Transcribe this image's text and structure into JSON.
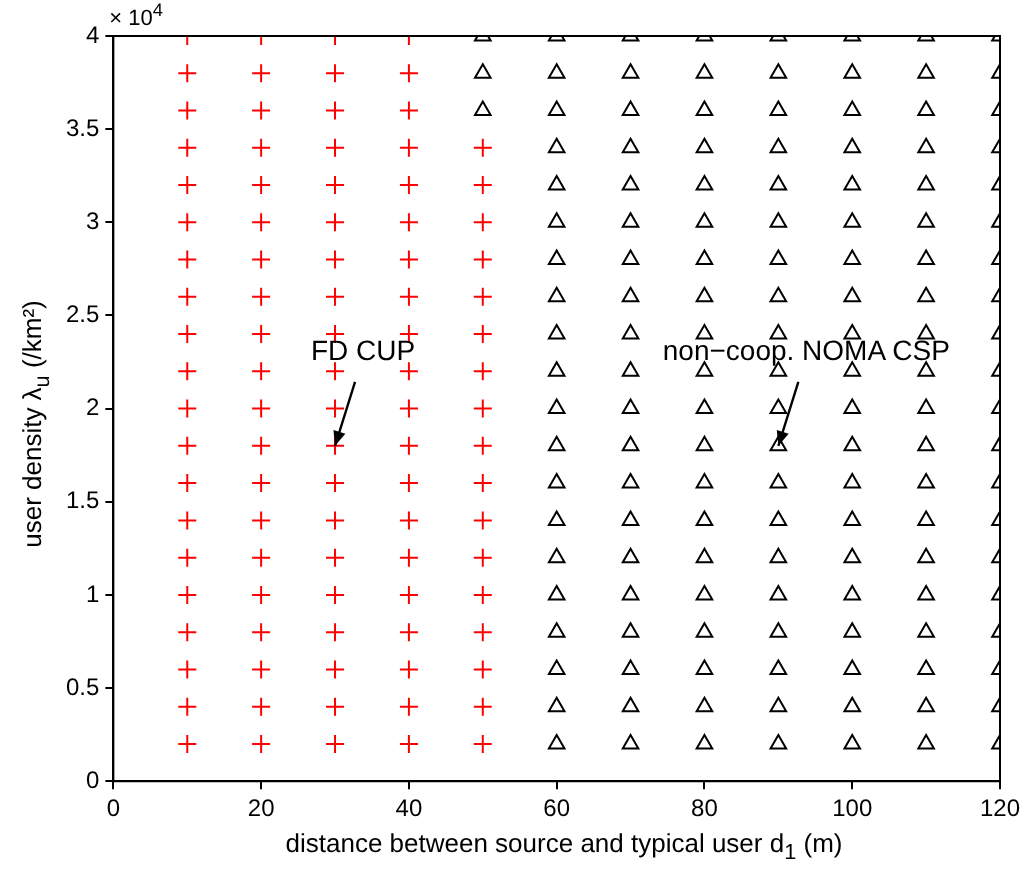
{
  "chart_data": {
    "type": "scatter",
    "xlabel": "distance between source and typical user  d$_{1}$ (m)",
    "ylabel": "user density λ$_{u}$ (/km²)",
    "xlim": [
      0,
      120
    ],
    "xticks": [
      0,
      20,
      40,
      60,
      80,
      100,
      120
    ],
    "ylim": [
      0,
      4
    ],
    "yticks": [
      0,
      0.5,
      1,
      1.5,
      2,
      2.5,
      3,
      3.5,
      4
    ],
    "annotations": [
      "× 10$^{4}$",
      {
        "text": "FD CUP",
        "x": 30,
        "y": 1.8
      },
      {
        "text": "non−coop. NOMA CSP",
        "x": 90,
        "y": 1.8
      }
    ],
    "series": [
      {
        "color": "#ff0000",
        "marker": "cross",
        "x": [
          10,
          10,
          10,
          10,
          10,
          10,
          10,
          10,
          10,
          10,
          10,
          10,
          10,
          10,
          10,
          10,
          10,
          10,
          10,
          10,
          20,
          20,
          20,
          20,
          20,
          20,
          20,
          20,
          20,
          20,
          20,
          20,
          20,
          20,
          20,
          20,
          20,
          20,
          20,
          20,
          30,
          30,
          30,
          30,
          30,
          30,
          30,
          30,
          30,
          30,
          30,
          30,
          30,
          30,
          30,
          30,
          30,
          30,
          30,
          30,
          40,
          40,
          40,
          40,
          40,
          40,
          40,
          40,
          40,
          40,
          40,
          40,
          40,
          40,
          40,
          40,
          40,
          40,
          40,
          40,
          50,
          50,
          50,
          50,
          50,
          50,
          50,
          50,
          50,
          50,
          50,
          50,
          50,
          50,
          50,
          50,
          50
        ],
        "values": [
          0.2,
          0.4,
          0.6,
          0.8,
          1,
          1.2,
          1.4,
          1.6,
          1.8,
          2,
          2.2,
          2.4,
          2.6,
          2.8,
          3,
          3.2,
          3.4,
          3.6,
          3.8,
          4,
          0.2,
          0.4,
          0.6,
          0.8,
          1,
          1.2,
          1.4,
          1.6,
          1.8,
          2,
          2.2,
          2.4,
          2.6,
          2.8,
          3,
          3.2,
          3.4,
          3.6,
          3.8,
          4,
          0.2,
          0.4,
          0.6,
          0.8,
          1,
          1.2,
          1.4,
          1.6,
          1.8,
          2,
          2.2,
          2.4,
          2.6,
          2.8,
          3,
          3.2,
          3.4,
          3.6,
          3.8,
          4,
          0.2,
          0.4,
          0.6,
          0.8,
          1,
          1.2,
          1.4,
          1.6,
          1.8,
          2,
          2.2,
          2.4,
          2.6,
          2.8,
          3,
          3.2,
          3.4,
          3.6,
          3.8,
          4,
          0.2,
          0.4,
          0.6,
          0.8,
          1,
          1.2,
          1.4,
          1.6,
          1.8,
          2,
          2.2,
          2.4,
          2.6,
          2.8,
          3,
          3.2,
          3.4
        ]
      },
      {
        "color": "#000000",
        "marker": "triangle",
        "x": [
          50,
          50,
          50,
          60,
          60,
          60,
          60,
          60,
          60,
          60,
          60,
          60,
          60,
          60,
          60,
          60,
          60,
          60,
          60,
          60,
          60,
          60,
          60,
          70,
          70,
          70,
          70,
          70,
          70,
          70,
          70,
          70,
          70,
          70,
          70,
          70,
          70,
          70,
          70,
          70,
          70,
          70,
          70,
          80,
          80,
          80,
          80,
          80,
          80,
          80,
          80,
          80,
          80,
          80,
          80,
          80,
          80,
          80,
          80,
          80,
          80,
          80,
          80,
          90,
          90,
          90,
          90,
          90,
          90,
          90,
          90,
          90,
          90,
          90,
          90,
          90,
          90,
          90,
          90,
          90,
          90,
          90,
          90,
          100,
          100,
          100,
          100,
          100,
          100,
          100,
          100,
          100,
          100,
          100,
          100,
          100,
          100,
          100,
          100,
          100,
          100,
          100,
          100,
          110,
          110,
          110,
          110,
          110,
          110,
          110,
          110,
          110,
          110,
          110,
          110,
          110,
          110,
          110,
          110,
          110,
          110,
          110,
          110,
          120,
          120,
          120,
          120,
          120,
          120,
          120,
          120,
          120,
          120,
          120,
          120,
          120,
          120,
          120,
          120,
          120,
          120,
          120,
          120
        ],
        "values": [
          3.6,
          3.8,
          4,
          0.2,
          0.4,
          0.6,
          0.8,
          1,
          1.2,
          1.4,
          1.6,
          1.8,
          2,
          2.2,
          2.4,
          2.6,
          2.8,
          3,
          3.2,
          3.4,
          3.6,
          3.8,
          4,
          0.2,
          0.4,
          0.6,
          0.8,
          1,
          1.2,
          1.4,
          1.6,
          1.8,
          2,
          2.2,
          2.4,
          2.6,
          2.8,
          3,
          3.2,
          3.4,
          3.6,
          3.8,
          4,
          0.2,
          0.4,
          0.6,
          0.8,
          1,
          1.2,
          1.4,
          1.6,
          1.8,
          2,
          2.2,
          2.4,
          2.6,
          2.8,
          3,
          3.2,
          3.4,
          3.6,
          3.8,
          4,
          0.2,
          0.4,
          0.6,
          0.8,
          1,
          1.2,
          1.4,
          1.6,
          1.8,
          2,
          2.2,
          2.4,
          2.6,
          2.8,
          3,
          3.2,
          3.4,
          3.6,
          3.8,
          4,
          0.2,
          0.4,
          0.6,
          0.8,
          1,
          1.2,
          1.4,
          1.6,
          1.8,
          2,
          2.2,
          2.4,
          2.6,
          2.8,
          3,
          3.2,
          3.4,
          3.6,
          3.8,
          4,
          0.2,
          0.4,
          0.6,
          0.8,
          1,
          1.2,
          1.4,
          1.6,
          1.8,
          2,
          2.2,
          2.4,
          2.6,
          2.8,
          3,
          3.2,
          3.4,
          3.6,
          3.8,
          4,
          0.2,
          0.4,
          0.6,
          0.8,
          1,
          1.2,
          1.4,
          1.6,
          1.8,
          2,
          2.2,
          2.4,
          2.6,
          2.8,
          3,
          3.2,
          3.4,
          3.6,
          3.8,
          4
        ]
      }
    ]
  }
}
